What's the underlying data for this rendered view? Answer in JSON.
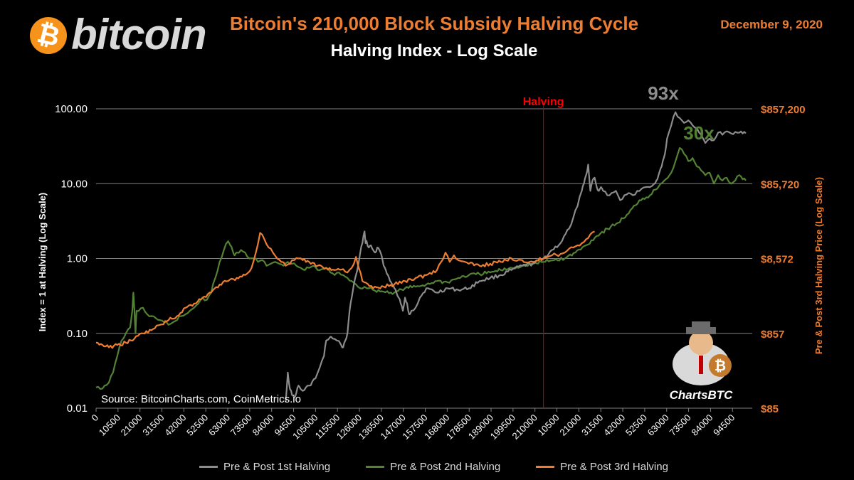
{
  "header": {
    "logo_text": "bitcoin",
    "logo_symbol": "₿",
    "title": "Bitcoin's 210,000 Block Subsidy Halving Cycle",
    "subtitle": "Halving Index - Log Scale",
    "date": "December 9, 2020"
  },
  "colors": {
    "background": "#000000",
    "accent": "#ed7d31",
    "series_1st": "#8c8c8c",
    "series_2nd": "#548235",
    "series_3rd": "#ed7d31",
    "halving_line": "#c00000",
    "grid": "#808080"
  },
  "branding": {
    "label": "ChartsBTC"
  },
  "chart_data": {
    "type": "line",
    "title": "Bitcoin's 210,000 Block Subsidy Halving Cycle",
    "subtitle": "Halving Index - Log Scale",
    "ylabel": "Index = 1 at Halving (Log Scale)",
    "y2label": "Pre & Post 3rd Halving Price (Log Scale)",
    "yscale": "log",
    "ylim": [
      0.01,
      100
    ],
    "y_ticks": [
      "100.00",
      "10.00",
      "1.00",
      "0.10",
      "0.01"
    ],
    "y2_ticks": [
      "$857,200",
      "$85,720",
      "$8,572",
      "$857",
      "$85"
    ],
    "x_tick_labels": [
      "0",
      "10500",
      "21000",
      "31500",
      "42000",
      "52500",
      "63000",
      "73500",
      "84000",
      "94500",
      "105000",
      "115500",
      "126000",
      "136500",
      "147000",
      "157500",
      "168000",
      "178500",
      "189000",
      "199500",
      "210000",
      "10500",
      "21000",
      "31500",
      "42000",
      "52500",
      "63000",
      "73500",
      "84000",
      "94500"
    ],
    "xlim": [
      0,
      308000
    ],
    "x_note": "blocks relative to cycle; 210000 marks halving",
    "halving_x": 210000,
    "annotations": [
      {
        "text": "Halving",
        "color": "#ff0000"
      },
      {
        "text": "93x",
        "color": "#8c8c8c"
      },
      {
        "text": "30x",
        "color": "#548235"
      }
    ],
    "source": "Source: BitcoinCharts.com,  CoinMetrics.io",
    "legend_position": "bottom",
    "grid": true,
    "series": [
      {
        "name": "Pre & Post 1st Halving",
        "color": "#8c8c8c",
        "x": [
          89000,
          90000,
          91000,
          92000,
          93000,
          94000,
          95000,
          96000,
          97000,
          100000,
          103000,
          105000,
          107000,
          108000,
          110000,
          111000,
          113000,
          115000,
          116000,
          117000,
          118000,
          119000,
          120000,
          121000,
          122000,
          123000,
          124000,
          125000,
          126000,
          126500,
          127000,
          128000,
          129000,
          130000,
          131000,
          132000,
          133000,
          134000,
          135000,
          136000,
          137000,
          138000,
          139000,
          140000,
          141000,
          142000,
          143000,
          144000,
          145000,
          146000,
          147000,
          148000,
          150000,
          152000,
          155000,
          160000,
          165000,
          170000,
          175000,
          180000,
          185000,
          190000,
          195000,
          200000,
          205000,
          210000,
          214000,
          218000,
          222000,
          224000,
          226000,
          228000,
          229000,
          230000,
          231000,
          232000,
          233000,
          234000,
          235000,
          236000,
          237000,
          238000,
          240000,
          242000,
          244000,
          246000,
          248000,
          250000,
          252000,
          254000,
          256000,
          258000,
          260000,
          262000,
          263000,
          264000,
          265000,
          266000,
          267000,
          268000,
          270000,
          272000,
          274000,
          276000,
          278000,
          280000,
          282000,
          284000,
          286000,
          288000,
          290000,
          292000,
          294000,
          296000,
          298000,
          300000,
          302000,
          305000
        ],
        "y": [
          0.012,
          0.03,
          0.018,
          0.015,
          0.014,
          0.016,
          0.02,
          0.018,
          0.017,
          0.02,
          0.025,
          0.035,
          0.05,
          0.08,
          0.09,
          0.085,
          0.08,
          0.07,
          0.065,
          0.08,
          0.1,
          0.2,
          0.3,
          0.45,
          0.6,
          0.8,
          1.2,
          1.6,
          2.3,
          1.6,
          1.7,
          1.4,
          1.5,
          1.3,
          1.2,
          1.4,
          1.3,
          1.1,
          0.8,
          0.7,
          0.6,
          0.5,
          0.45,
          0.4,
          0.35,
          0.3,
          0.25,
          0.2,
          0.3,
          0.25,
          0.18,
          0.2,
          0.22,
          0.3,
          0.4,
          0.35,
          0.4,
          0.38,
          0.4,
          0.5,
          0.55,
          0.6,
          0.7,
          0.8,
          0.85,
          1.0,
          1.3,
          1.6,
          2.5,
          3.5,
          5,
          8,
          10,
          13,
          18,
          8,
          11,
          12,
          9,
          8,
          9,
          8,
          7,
          7.5,
          8,
          6,
          7,
          7.5,
          7,
          8,
          8.5,
          9,
          9,
          10,
          11,
          13,
          16,
          20,
          25,
          40,
          60,
          90,
          75,
          65,
          70,
          60,
          55,
          45,
          35,
          40,
          38,
          48,
          45,
          50,
          47,
          49,
          48,
          47
        ],
        "pattern": [
          0.012,
          0.03,
          0.018,
          0.015,
          0.014,
          0.016,
          0.02
        ]
      },
      {
        "name": "Pre & Post 2nd Halving",
        "color": "#548235",
        "x": [
          0,
          2000,
          4000,
          6000,
          8000,
          10000,
          12000,
          14000,
          16000,
          17000,
          17500,
          18000,
          18500,
          19000,
          20000,
          22000,
          24000,
          26000,
          28000,
          30000,
          32000,
          34000,
          36000,
          38000,
          40000,
          42000,
          44000,
          46000,
          48000,
          50000,
          52000,
          54000,
          56000,
          58000,
          60000,
          62000,
          63000,
          64000,
          65000,
          66000,
          68000,
          70000,
          72000,
          74000,
          76000,
          78000,
          80000,
          82000,
          84000,
          86000,
          88000,
          90000,
          92000,
          94000,
          96000,
          98000,
          100000,
          102000,
          104000,
          106000,
          108000,
          110000,
          112000,
          114000,
          116000,
          118000,
          120000,
          122000,
          124000,
          126000,
          128000,
          130000,
          135000,
          140000,
          145000,
          150000,
          155000,
          160000,
          165000,
          170000,
          175000,
          180000,
          185000,
          190000,
          195000,
          200000,
          205000,
          210000,
          215000,
          220000,
          225000,
          230000,
          235000,
          240000,
          245000,
          250000,
          255000,
          260000,
          265000,
          270000,
          272000,
          274000,
          276000,
          278000,
          280000,
          282000,
          284000,
          286000,
          288000,
          290000,
          292000,
          294000,
          296000,
          298000,
          300000,
          302000,
          305000
        ],
        "y": [
          0.019,
          0.018,
          0.02,
          0.022,
          0.03,
          0.05,
          0.08,
          0.1,
          0.12,
          0.2,
          0.35,
          0.2,
          0.1,
          0.2,
          0.2,
          0.22,
          0.18,
          0.17,
          0.16,
          0.15,
          0.14,
          0.13,
          0.14,
          0.15,
          0.17,
          0.18,
          0.2,
          0.22,
          0.25,
          0.3,
          0.28,
          0.35,
          0.55,
          0.9,
          1.3,
          1.7,
          1.5,
          1.3,
          1.1,
          1.2,
          1.3,
          1.2,
          1.0,
          1.0,
          0.9,
          0.95,
          0.8,
          0.85,
          0.9,
          0.85,
          0.8,
          0.9,
          0.85,
          0.8,
          0.75,
          0.7,
          0.75,
          0.8,
          0.7,
          0.72,
          0.75,
          0.65,
          0.6,
          0.65,
          0.6,
          0.55,
          0.5,
          0.45,
          0.4,
          0.42,
          0.4,
          0.38,
          0.36,
          0.35,
          0.4,
          0.42,
          0.45,
          0.5,
          0.48,
          0.55,
          0.6,
          0.62,
          0.65,
          0.7,
          0.75,
          0.8,
          0.85,
          0.9,
          0.95,
          1.0,
          1.2,
          1.5,
          2.0,
          2.5,
          3.0,
          4.0,
          6.0,
          7.0,
          10.0,
          14.0,
          20.0,
          30.0,
          25.0,
          20.0,
          22.0,
          17.0,
          15.0,
          13.0,
          14.0,
          10.0,
          13.0,
          11.0,
          12.0,
          10.0,
          11.0,
          13.0,
          11.0
        ],
        "pattern": [
          0.019
        ]
      },
      {
        "name": "Pre & Post 3rd Halving",
        "color": "#ed7d31",
        "x": [
          0,
          3000,
          6000,
          10000,
          14000,
          18000,
          22000,
          26000,
          30000,
          34000,
          38000,
          42000,
          46000,
          50000,
          54000,
          58000,
          62000,
          66000,
          70000,
          73000,
          75000,
          77000,
          79000,
          81000,
          83000,
          85000,
          87000,
          89000,
          91000,
          93000,
          95000,
          97000,
          100000,
          104000,
          108000,
          112000,
          116000,
          118000,
          120000,
          122000,
          125000,
          130000,
          135000,
          140000,
          145000,
          150000,
          155000,
          160000,
          162000,
          164000,
          166000,
          168000,
          170000,
          175000,
          180000,
          185000,
          190000,
          195000,
          200000,
          205000,
          210000,
          212000,
          214000,
          216000,
          218000,
          220000,
          222000,
          224000,
          226000,
          228000,
          230000,
          232000,
          234000
        ],
        "y": [
          0.075,
          0.07,
          0.065,
          0.07,
          0.075,
          0.085,
          0.1,
          0.11,
          0.13,
          0.15,
          0.17,
          0.22,
          0.25,
          0.3,
          0.35,
          0.45,
          0.5,
          0.55,
          0.6,
          0.75,
          1.2,
          2.2,
          1.8,
          1.4,
          1.2,
          1.0,
          0.9,
          0.8,
          0.85,
          0.95,
          1.0,
          0.95,
          0.9,
          0.8,
          0.75,
          0.7,
          0.72,
          0.65,
          0.75,
          1.05,
          0.5,
          0.4,
          0.42,
          0.45,
          0.5,
          0.55,
          0.6,
          0.7,
          0.9,
          1.2,
          0.9,
          1.1,
          0.95,
          0.85,
          0.8,
          0.85,
          0.9,
          1.0,
          0.95,
          0.9,
          1.0,
          1.05,
          1.1,
          1.12,
          1.15,
          1.2,
          1.35,
          1.4,
          1.5,
          1.6,
          1.8,
          2.1,
          2.3
        ]
      }
    ]
  }
}
